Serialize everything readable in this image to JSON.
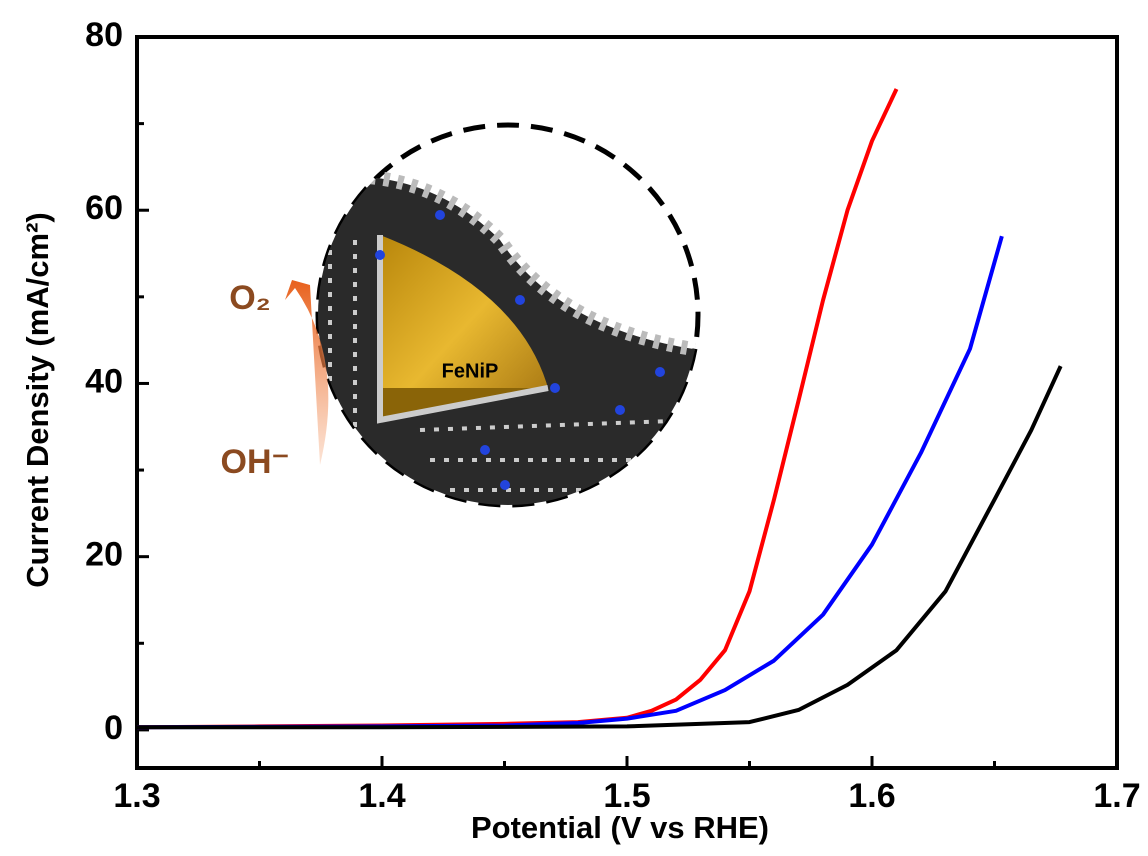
{
  "chart_data": {
    "type": "line",
    "xlabel": "Potential (V vs RHE)",
    "ylabel": "Current Density (mA/cm²)",
    "annotations": [
      "FeNiP",
      "O₂",
      "OH⁻"
    ],
    "xlim": [
      1.3,
      1.7
    ],
    "xticks": [
      1.3,
      1.4,
      1.5,
      1.6,
      1.7
    ],
    "ylim": [
      -4.4,
      80
    ],
    "yticks": [
      0,
      20,
      40,
      60,
      80
    ],
    "series": [
      {
        "color": "#ff0000",
        "x": [
          1.3,
          1.35,
          1.4,
          1.45,
          1.48,
          1.5,
          1.51,
          1.52,
          1.53,
          1.54,
          1.55,
          1.56,
          1.57,
          1.58,
          1.59,
          1.6,
          1.61
        ],
        "values": [
          0.3,
          0.4,
          0.5,
          0.7,
          0.9,
          1.4,
          2.2,
          3.5,
          5.8,
          9.2,
          16,
          26.6,
          38,
          49.6,
          60,
          68,
          74
        ]
      },
      {
        "color": "#0000ff",
        "x": [
          1.3,
          1.35,
          1.4,
          1.45,
          1.48,
          1.5,
          1.52,
          1.54,
          1.56,
          1.58,
          1.6,
          1.62,
          1.64,
          1.653
        ],
        "values": [
          0.3,
          0.35,
          0.4,
          0.5,
          0.8,
          1.3,
          2.2,
          4.6,
          8,
          13.3,
          21.4,
          32,
          44,
          57
        ]
      },
      {
        "color": "#000000",
        "x": [
          1.3,
          1.4,
          1.5,
          1.55,
          1.57,
          1.59,
          1.61,
          1.63,
          1.65,
          1.665,
          1.677
        ],
        "values": [
          0.3,
          0.3,
          0.4,
          0.9,
          2.3,
          5.2,
          9.2,
          16,
          26.6,
          34.6,
          42
        ]
      }
    ]
  }
}
